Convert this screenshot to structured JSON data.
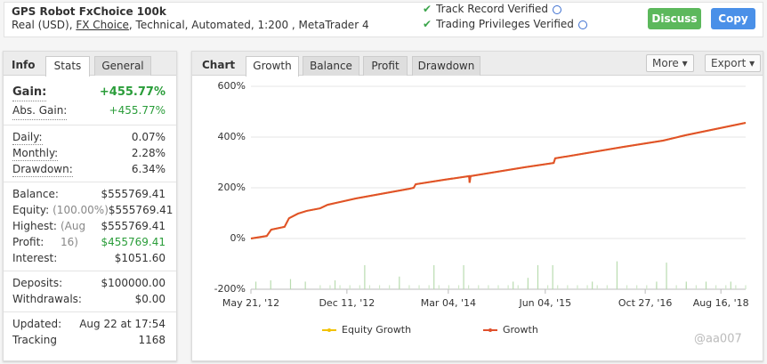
{
  "header": {
    "title": "GPS Robot FxChoice 100k",
    "subtitle_start": "Real (USD),",
    "broker": "FX Choice",
    "subtitle_end": ", Technical, Automated, 1:200 , MetaTrader 4",
    "verified": [
      "Track Record Verified",
      "Trading Privileges Verified"
    ],
    "buttons": [
      "Discuss",
      "Copy"
    ]
  },
  "info": {
    "tabs": [
      "Info",
      "Stats",
      "General"
    ],
    "groups": [
      [
        {
          "label": "Gain:",
          "value": "+455.77%"
        },
        {
          "label": "Abs. Gain:",
          "value": "+455.77%"
        }
      ],
      [
        {
          "label": "Daily:",
          "value": "0.07%"
        },
        {
          "label": "Monthly:",
          "value": "2.28%"
        },
        {
          "label": "Drawdown:",
          "value": "6.34%"
        }
      ],
      [
        {
          "label": "Balance:",
          "value": "$555769.41"
        },
        {
          "label": "Equity:",
          "note": "(100.00%)",
          "value": "$555769.41"
        },
        {
          "label": "Highest:",
          "note": "(Aug 16)",
          "value": "$555769.41"
        },
        {
          "label": "Profit:",
          "value": "$455769.41"
        },
        {
          "label": "Interest:",
          "value": "$1051.60"
        }
      ],
      [
        {
          "label": "Deposits:",
          "value": "$100000.00"
        },
        {
          "label": "Withdrawals:",
          "value": "$0.00"
        }
      ],
      [
        {
          "label": "Updated:",
          "value": "Aug 22 at 17:54"
        },
        {
          "label": "Tracking",
          "value": "1168"
        }
      ]
    ]
  },
  "chart_panel": {
    "label": "Chart",
    "tabs": [
      "Growth",
      "Balance",
      "Profit",
      "Drawdown"
    ],
    "buttons": [
      "More",
      "Export"
    ],
    "watermark": "@aa007"
  },
  "chart_data": {
    "type": "line",
    "xlim": [
      0,
      100
    ],
    "xticks": [
      {
        "value": 0,
        "label": "May 21, '12"
      },
      {
        "value": 19.4,
        "label": "Dec 11, '12"
      },
      {
        "value": 39.9,
        "label": "Mar 04, '14"
      },
      {
        "value": 59.5,
        "label": "Jun 04, '15"
      },
      {
        "value": 79.7,
        "label": "Oct 27, '16"
      },
      {
        "value": 95,
        "label": "Aug 16, '18"
      }
    ],
    "ylim": [
      -200,
      600
    ],
    "yticks": [
      {
        "value": -200,
        "label": "-200%"
      },
      {
        "value": 0,
        "label": "0%"
      },
      {
        "value": 200,
        "label": "200%"
      },
      {
        "value": 400,
        "label": "400%"
      },
      {
        "value": 600,
        "label": "600%"
      }
    ],
    "grid": true,
    "x": [
      0,
      3.2,
      4.1,
      6.8,
      7.7,
      9.5,
      11.3,
      14,
      15.5,
      21.2,
      32,
      32.9,
      33.3,
      39.2,
      44.1,
      44.2,
      44.4,
      55.4,
      61.2,
      61.5,
      75.2,
      83.3,
      87.8,
      100
    ],
    "series": [
      {
        "name": "Equity Growth",
        "color": "#f2c200",
        "values": [
          0,
          10,
          35,
          46,
          80,
          98,
          109,
          119,
          133,
          158,
          196,
          200,
          214,
          232,
          246,
          220,
          246,
          281,
          298,
          316,
          361,
          386,
          407,
          456
        ]
      },
      {
        "name": "Growth",
        "color": "#e0502c",
        "values": [
          0,
          10,
          35,
          46,
          80,
          98,
          109,
          119,
          133,
          158,
          196,
          200,
          214,
          232,
          246,
          220,
          246,
          281,
          298,
          316,
          361,
          386,
          407,
          456
        ]
      }
    ],
    "activity": {
      "color": "#b9dcb0",
      "x": [
        1,
        4,
        8,
        11,
        17,
        23,
        30,
        37,
        43,
        53,
        56,
        58,
        61,
        69,
        74,
        82,
        84,
        88,
        92,
        97
      ],
      "values": [
        -170,
        -165,
        -160,
        -170,
        -165,
        -105,
        -150,
        -105,
        -105,
        -170,
        -155,
        -105,
        -105,
        -170,
        -90,
        -170,
        -95,
        -170,
        -170,
        -170
      ]
    },
    "activity_base": {
      "color": "#cfe8c8",
      "x": [
        14,
        16,
        18,
        20,
        22,
        24,
        26,
        28,
        30,
        32,
        34,
        36,
        38,
        40,
        42,
        44,
        46,
        48,
        50,
        52,
        54,
        56,
        58,
        60,
        62,
        64,
        66,
        68,
        70,
        72,
        74,
        76,
        78,
        80,
        82,
        84,
        86,
        88,
        90,
        92,
        94,
        96,
        98,
        100
      ],
      "values": [
        -184,
        -184,
        -184,
        -184,
        -184,
        -184,
        -184,
        -184,
        -184,
        -184,
        -184,
        -184,
        -184,
        -184,
        -184,
        -184,
        -184,
        -184,
        -184,
        -184,
        -184,
        -184,
        -184,
        -184,
        -184,
        -184,
        -184,
        -184,
        -184,
        -184,
        -184,
        -184,
        -184,
        -184,
        -184,
        -184,
        -184,
        -184,
        -184,
        -184,
        -184,
        -184,
        -184,
        -184
      ]
    }
  }
}
